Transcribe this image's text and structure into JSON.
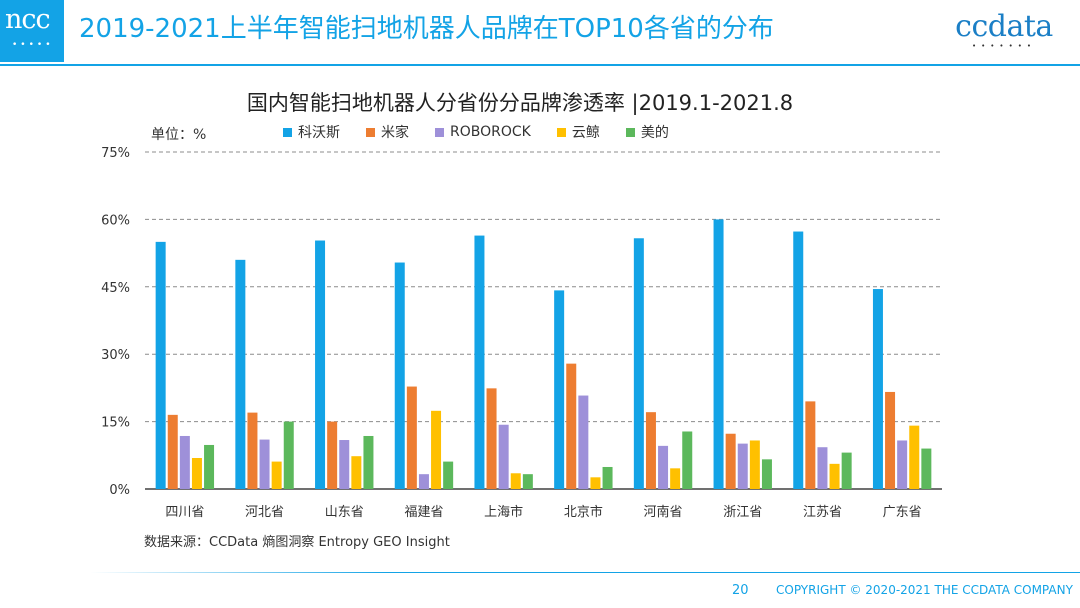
{
  "header": {
    "logo_text": "ncc",
    "title": "2019-2021上半年智能扫地机器人品牌在TOP10各省的分布",
    "brand_logo_text": "ccdata"
  },
  "unit_label": "单位：%",
  "source_note": "数据来源：CCData 熵图洞察 Entropy GEO Insight",
  "footer": {
    "page_number": "20",
    "copyright": "COPYRIGHT © 2020-2021 THE CCDATA COMPANY"
  },
  "chart_data": {
    "type": "bar",
    "title": "国内智能扫地机器人分省份分品牌渗透率 |2019.1-2021.8",
    "xlabel": "",
    "ylabel": "",
    "ylim": [
      0,
      75
    ],
    "yticks": [
      0,
      15,
      30,
      45,
      60,
      75
    ],
    "ytick_labels": [
      "0%",
      "15%",
      "30%",
      "45%",
      "60%",
      "75%"
    ],
    "grid": true,
    "legend_position": "top",
    "categories": [
      "四川省",
      "河北省",
      "山东省",
      "福建省",
      "上海市",
      "北京市",
      "河南省",
      "浙江省",
      "江苏省",
      "广东省"
    ],
    "series": [
      {
        "name": "科沃斯",
        "color": "#13a3e6",
        "values": [
          55,
          51,
          55.3,
          50.4,
          56.4,
          44.2,
          55.8,
          60,
          57.3,
          44.5
        ]
      },
      {
        "name": "米家",
        "color": "#ed7d31",
        "values": [
          16.5,
          17,
          15,
          22.8,
          22.4,
          27.9,
          17.1,
          12.3,
          19.5,
          21.6
        ]
      },
      {
        "name": "ROBOROCK",
        "color": "#9e90d9",
        "values": [
          11.8,
          11,
          10.9,
          3.3,
          14.3,
          20.8,
          9.6,
          10.1,
          9.3,
          10.8
        ]
      },
      {
        "name": "云鲸",
        "color": "#ffc000",
        "values": [
          6.9,
          6.1,
          7.3,
          17.4,
          3.5,
          2.6,
          4.6,
          10.8,
          5.6,
          14.1
        ]
      },
      {
        "name": "美的",
        "color": "#5cb85c",
        "values": [
          9.8,
          15,
          11.8,
          6.1,
          3.3,
          4.9,
          12.8,
          6.6,
          8.1,
          9
        ]
      }
    ]
  }
}
